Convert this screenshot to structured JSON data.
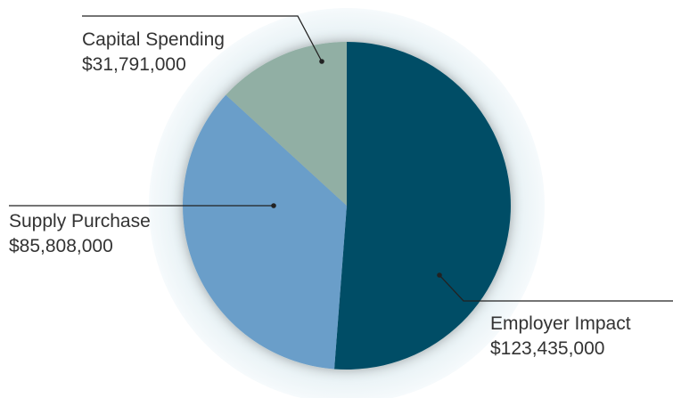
{
  "chart_data": {
    "type": "pie",
    "title": "",
    "categories": [
      "Employer Impact",
      "Supply Purchase",
      "Capital Spending"
    ],
    "values": [
      123435000,
      85808000,
      31791000
    ],
    "value_labels": [
      "$123,435,000",
      "$85,808,000",
      "$31,791,000"
    ],
    "colors": [
      "#004d66",
      "#6a9ec9",
      "#91afa4"
    ],
    "halo_color": "#eef5f8",
    "leader_line_color": "#222222",
    "label_color": "#333333",
    "legend": "none",
    "start_angle": "12 o'clock",
    "direction": "clockwise"
  }
}
